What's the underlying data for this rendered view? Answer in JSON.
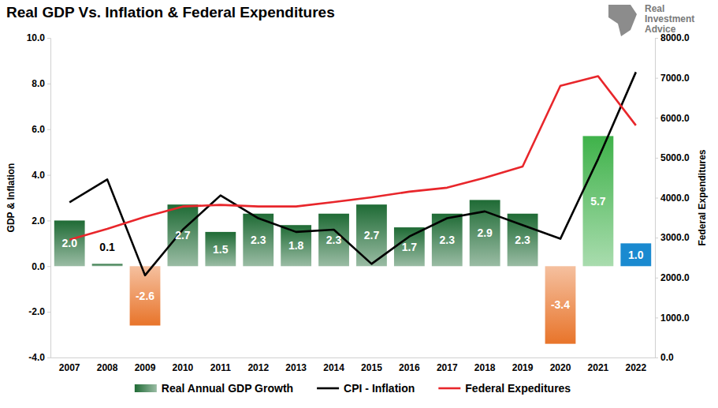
{
  "chart_data": {
    "type": "bar",
    "title": "Real GDP Vs. Inflation & Federal Expenditures",
    "annotations": [
      "Real",
      "Investment",
      "Advice"
    ],
    "y_label": "GDP & Inflation",
    "y2_label": "Federal Expenditures",
    "categories": [
      "2007",
      "2008",
      "2009",
      "2010",
      "2011",
      "2012",
      "2013",
      "2014",
      "2015",
      "2016",
      "2017",
      "2018",
      "2019",
      "2020",
      "2021",
      "2022"
    ],
    "ylim": [
      -4,
      10
    ],
    "yticks": [
      {
        "value": -4,
        "label": "-4.0"
      },
      {
        "value": -2,
        "label": "-2.0"
      },
      {
        "value": 0,
        "label": "0.0"
      },
      {
        "value": 2,
        "label": "2.0"
      },
      {
        "value": 4,
        "label": "4.0"
      },
      {
        "value": 6,
        "label": "6.0"
      },
      {
        "value": 8,
        "label": "8.0"
      },
      {
        "value": 10,
        "label": "10.0"
      }
    ],
    "y2lim": [
      0,
      8000
    ],
    "y2ticks": [
      {
        "value": 0,
        "label": "0.0"
      },
      {
        "value": 1000,
        "label": "1000.0"
      },
      {
        "value": 2000,
        "label": "2000.0"
      },
      {
        "value": 3000,
        "label": "3000.0"
      },
      {
        "value": 4000,
        "label": "4000.0"
      },
      {
        "value": 5000,
        "label": "5000.0"
      },
      {
        "value": 6000,
        "label": "6000.0"
      },
      {
        "value": 7000,
        "label": "7000.0"
      },
      {
        "value": 8000,
        "label": "8000.0"
      }
    ],
    "grid": false,
    "legend": "bottom",
    "series": [
      {
        "name": "Real Annual GDP Growth",
        "type": "bar",
        "data_labels": true,
        "colors": [
          "#1f6b35",
          "#1f6b35",
          "#e8742a",
          "#1f6b35",
          "#1f6b35",
          "#1f6b35",
          "#1f6b35",
          "#1f6b35",
          "#1f6b35",
          "#1f6b35",
          "#1f6b35",
          "#1f6b35",
          "#1f6b35",
          "#e8742a",
          "#3fb24a",
          "#1a8ad0"
        ],
        "values": [
          2.0,
          0.1,
          -2.6,
          2.7,
          1.5,
          2.3,
          1.8,
          2.3,
          2.7,
          1.7,
          2.3,
          2.9,
          2.3,
          -3.4,
          5.7,
          1.0
        ],
        "value_labels": [
          "2.0",
          "0.1",
          "-2.6",
          "2.7",
          "1.5",
          "2.3",
          "1.8",
          "2.3",
          "2.7",
          "1.7",
          "2.3",
          "2.9",
          "2.3",
          "-3.4",
          "5.7",
          "1.0"
        ]
      },
      {
        "name": "CPI - Inflation",
        "type": "line",
        "color": "#000000",
        "values": [
          2.8,
          3.8,
          -0.4,
          1.6,
          3.1,
          2.1,
          1.5,
          1.6,
          0.1,
          1.3,
          2.1,
          2.4,
          1.8,
          1.2,
          4.7,
          8.5
        ]
      },
      {
        "name": "Federal Expeditures",
        "type": "line",
        "color": "#e8262b",
        "axis": "y2",
        "values": [
          2950,
          3220,
          3520,
          3780,
          3820,
          3780,
          3780,
          3890,
          4010,
          4150,
          4250,
          4500,
          4780,
          6800,
          7040,
          5810
        ]
      }
    ]
  }
}
